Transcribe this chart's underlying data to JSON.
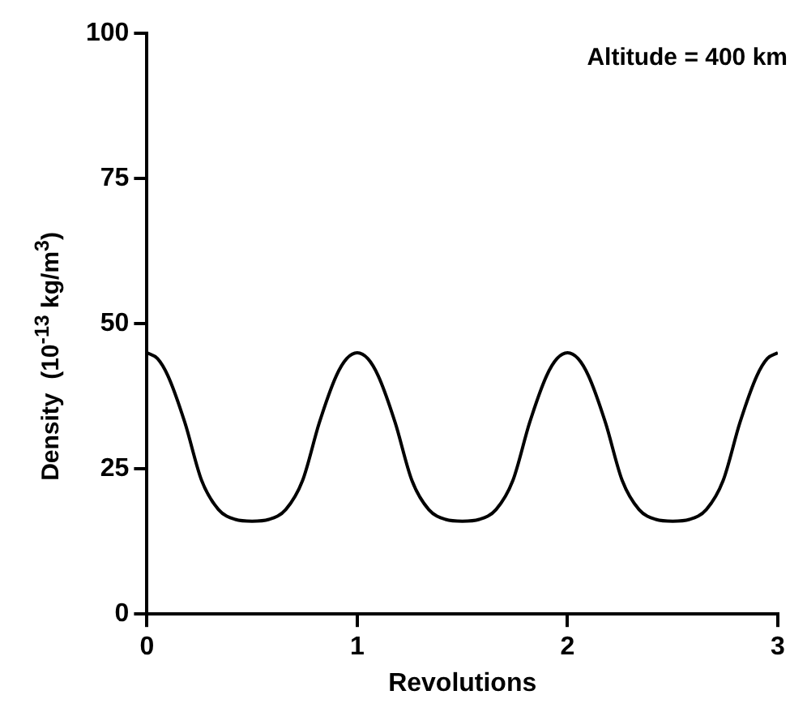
{
  "chart_data": {
    "type": "line",
    "xlabel": "Revolutions",
    "ylabel": "Density  (10$^{-13}$ kg/m$^{3}$)",
    "annotations": [
      "Altitude = 400 km"
    ],
    "x": [
      0,
      0.05,
      0.1,
      0.18,
      0.26,
      0.34,
      0.42,
      0.5,
      0.58,
      0.66,
      0.74,
      0.82,
      0.9,
      0.95,
      1,
      1.05,
      1.1,
      1.18,
      1.26,
      1.34,
      1.42,
      1.5,
      1.58,
      1.66,
      1.74,
      1.82,
      1.9,
      1.95,
      2,
      2.05,
      2.1,
      2.18,
      2.26,
      2.34,
      2.42,
      2.5,
      2.58,
      2.66,
      2.74,
      2.82,
      2.9,
      2.95,
      3
    ],
    "series": [
      {
        "color": "#000000",
        "values": [
          45,
          44,
          41,
          33,
          23,
          18,
          16.3,
          16,
          16.3,
          18,
          23,
          33,
          41,
          44,
          45,
          44,
          41,
          33,
          23,
          18,
          16.3,
          16,
          16.3,
          18,
          23,
          33,
          41,
          44,
          45,
          44,
          41,
          33,
          23,
          18,
          16.3,
          16,
          16.3,
          18,
          23,
          33,
          41,
          44,
          45
        ]
      }
    ],
    "xlim": [
      0,
      3
    ],
    "xticks": [
      0,
      1,
      2,
      3
    ],
    "ylim": [
      0,
      100
    ],
    "yticks": [
      0,
      25,
      50,
      75,
      100
    ],
    "grid": false,
    "legend": false,
    "marker": "none",
    "line_style": "solid"
  }
}
